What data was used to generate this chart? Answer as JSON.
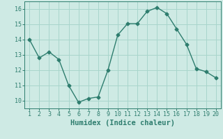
{
  "x": [
    1,
    2,
    3,
    4,
    5,
    6,
    7,
    8,
    9,
    10,
    11,
    12,
    13,
    14,
    15,
    16,
    17,
    18,
    19,
    20
  ],
  "y": [
    14.0,
    12.8,
    13.2,
    12.7,
    11.0,
    9.9,
    10.15,
    10.25,
    12.0,
    14.3,
    15.05,
    15.05,
    15.85,
    16.1,
    15.7,
    14.7,
    13.7,
    12.1,
    11.9,
    11.5
  ],
  "line_color": "#2e7d6e",
  "marker": "D",
  "marker_size": 2.5,
  "bg_color": "#ceeae4",
  "grid_color": "#a8d5cc",
  "xlabel": "Humidex (Indice chaleur)",
  "ylim": [
    9.5,
    16.5
  ],
  "xlim": [
    0.5,
    20.5
  ],
  "yticks": [
    10,
    11,
    12,
    13,
    14,
    15,
    16
  ],
  "xticks": [
    1,
    2,
    3,
    4,
    5,
    6,
    7,
    8,
    9,
    10,
    11,
    12,
    13,
    14,
    15,
    16,
    17,
    18,
    19,
    20
  ],
  "tick_fontsize": 6,
  "xlabel_fontsize": 7.5
}
